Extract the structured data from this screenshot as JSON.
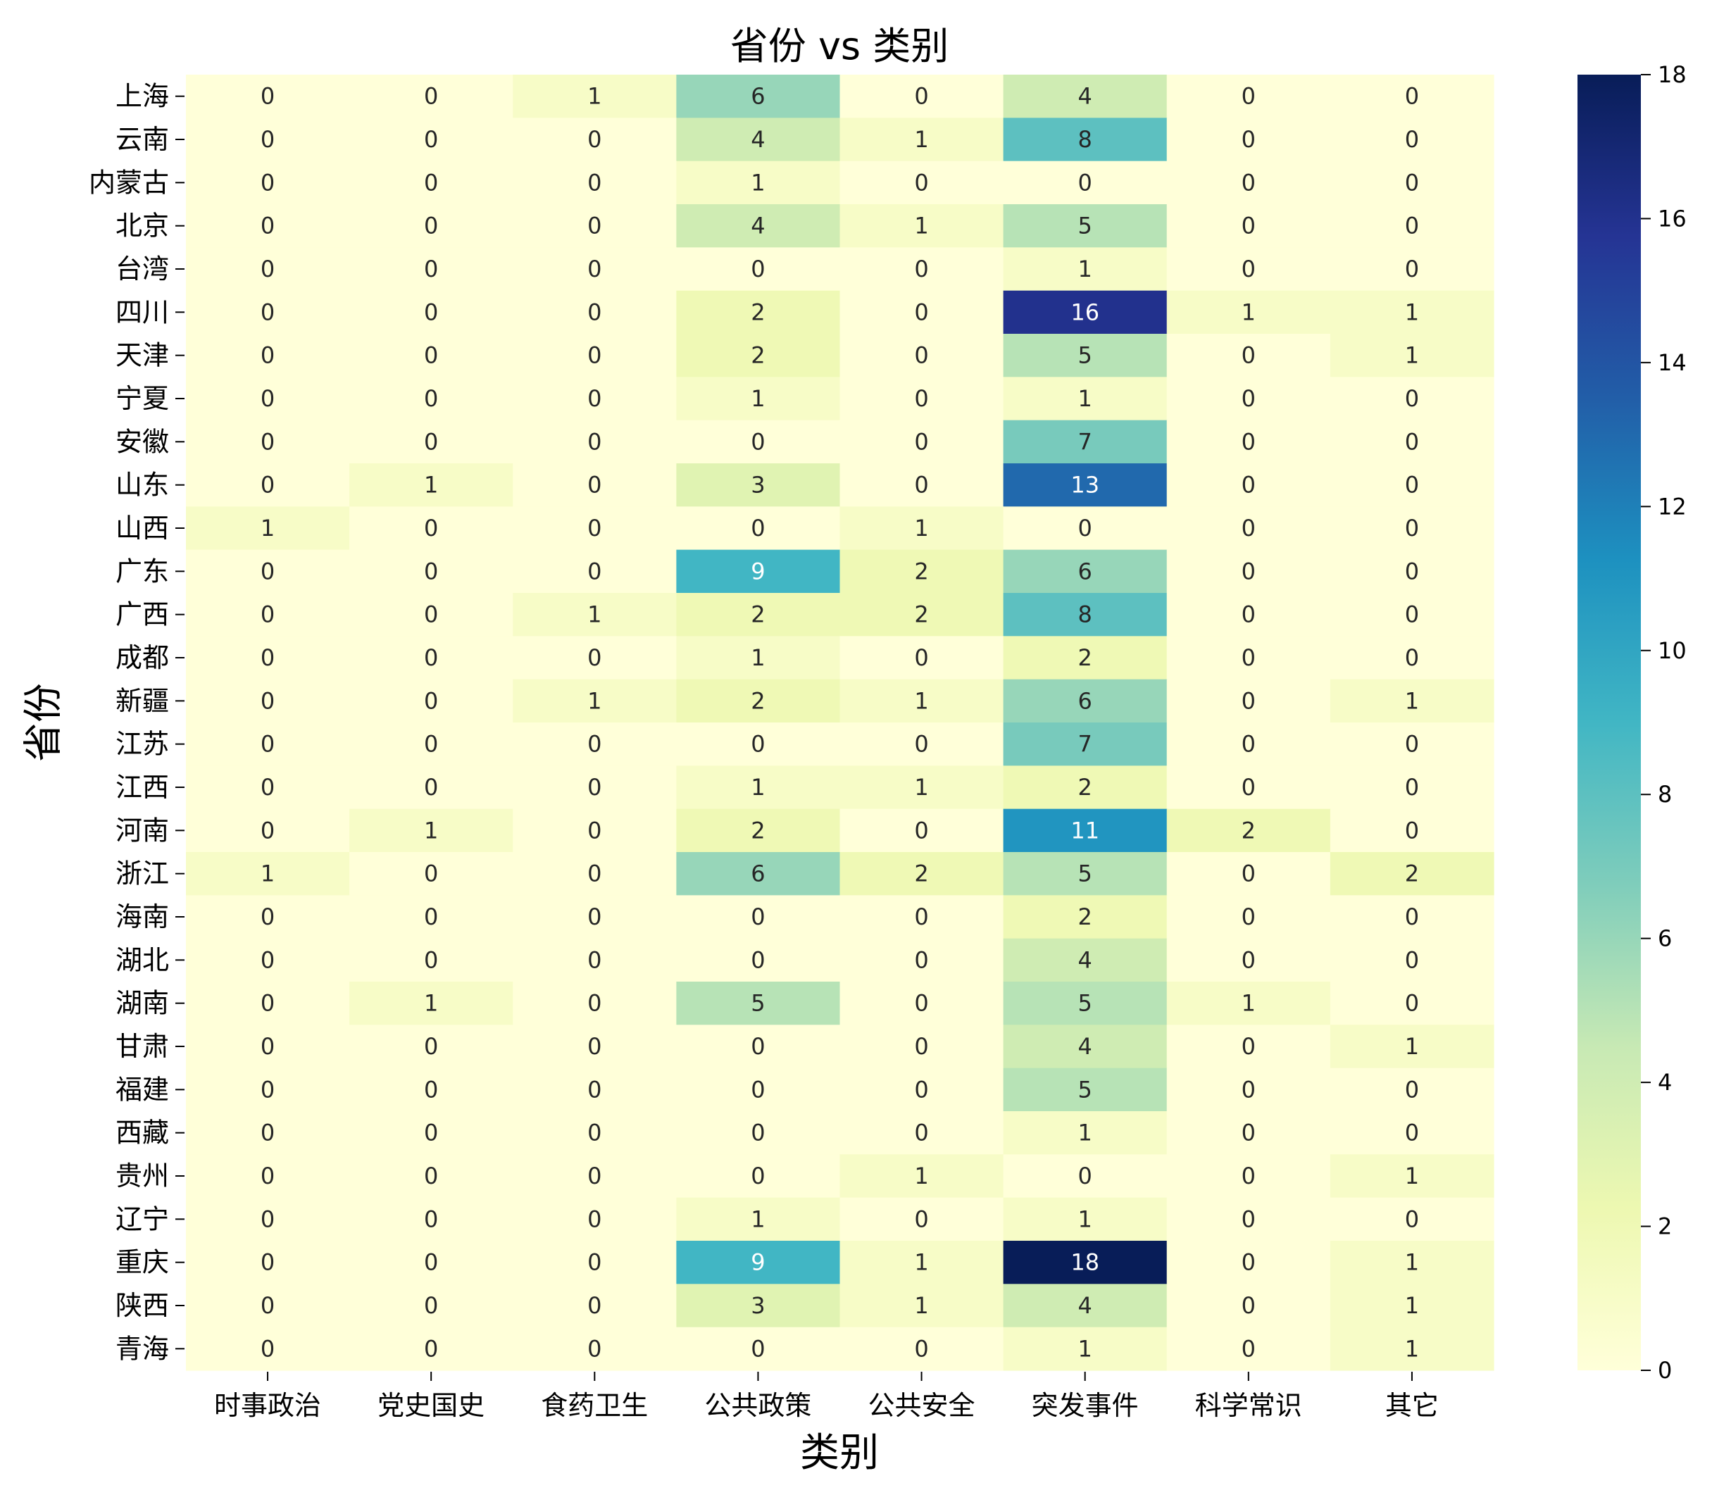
{
  "chart_data": {
    "type": "heatmap",
    "title": "省份 vs 类别",
    "xlabel": "类别",
    "ylabel": "省份",
    "x_categories": [
      "时事政治",
      "党史国史",
      "食药卫生",
      "公共政策",
      "公共安全",
      "突发事件",
      "科学常识",
      "其它"
    ],
    "y_categories": [
      "上海",
      "云南",
      "内蒙古",
      "北京",
      "台湾",
      "四川",
      "天津",
      "宁夏",
      "安徽",
      "山东",
      "山西",
      "广东",
      "广西",
      "成都",
      "新疆",
      "江苏",
      "江西",
      "河南",
      "浙江",
      "海南",
      "湖北",
      "湖南",
      "甘肃",
      "福建",
      "西藏",
      "贵州",
      "辽宁",
      "重庆",
      "陕西",
      "青海"
    ],
    "values": [
      [
        0,
        0,
        1,
        6,
        0,
        4,
        0,
        0
      ],
      [
        0,
        0,
        0,
        4,
        1,
        8,
        0,
        0
      ],
      [
        0,
        0,
        0,
        1,
        0,
        0,
        0,
        0
      ],
      [
        0,
        0,
        0,
        4,
        1,
        5,
        0,
        0
      ],
      [
        0,
        0,
        0,
        0,
        0,
        1,
        0,
        0
      ],
      [
        0,
        0,
        0,
        2,
        0,
        16,
        1,
        1
      ],
      [
        0,
        0,
        0,
        2,
        0,
        5,
        0,
        1
      ],
      [
        0,
        0,
        0,
        1,
        0,
        1,
        0,
        0
      ],
      [
        0,
        0,
        0,
        0,
        0,
        7,
        0,
        0
      ],
      [
        0,
        1,
        0,
        3,
        0,
        13,
        0,
        0
      ],
      [
        1,
        0,
        0,
        0,
        1,
        0,
        0,
        0
      ],
      [
        0,
        0,
        0,
        9,
        2,
        6,
        0,
        0
      ],
      [
        0,
        0,
        1,
        2,
        2,
        8,
        0,
        0
      ],
      [
        0,
        0,
        0,
        1,
        0,
        2,
        0,
        0
      ],
      [
        0,
        0,
        1,
        2,
        1,
        6,
        0,
        1
      ],
      [
        0,
        0,
        0,
        0,
        0,
        7,
        0,
        0
      ],
      [
        0,
        0,
        0,
        1,
        1,
        2,
        0,
        0
      ],
      [
        0,
        1,
        0,
        2,
        0,
        11,
        2,
        0
      ],
      [
        1,
        0,
        0,
        6,
        2,
        5,
        0,
        2
      ],
      [
        0,
        0,
        0,
        0,
        0,
        2,
        0,
        0
      ],
      [
        0,
        0,
        0,
        0,
        0,
        4,
        0,
        0
      ],
      [
        0,
        1,
        0,
        5,
        0,
        5,
        1,
        0
      ],
      [
        0,
        0,
        0,
        0,
        0,
        4,
        0,
        1
      ],
      [
        0,
        0,
        0,
        0,
        0,
        5,
        0,
        0
      ],
      [
        0,
        0,
        0,
        0,
        0,
        1,
        0,
        0
      ],
      [
        0,
        0,
        0,
        0,
        1,
        0,
        0,
        1
      ],
      [
        0,
        0,
        0,
        1,
        0,
        1,
        0,
        0
      ],
      [
        0,
        0,
        0,
        9,
        1,
        18,
        0,
        1
      ],
      [
        0,
        0,
        0,
        3,
        1,
        4,
        0,
        1
      ],
      [
        0,
        0,
        0,
        0,
        0,
        1,
        0,
        1
      ]
    ],
    "annotated": true,
    "annotation_colors": {
      "dark": "#262626",
      "light": "#ffffff"
    },
    "colormap": {
      "name": "YlGnBu",
      "stops": [
        "#ffffd9",
        "#edf8b1",
        "#c7e9b4",
        "#7fcdbb",
        "#41b6c4",
        "#1d91c0",
        "#225ea8",
        "#253494",
        "#081d58"
      ]
    },
    "colorbar": {
      "vmin": 0,
      "vmax": 18,
      "ticks": [
        0,
        2,
        4,
        6,
        8,
        10,
        12,
        14,
        16,
        18
      ],
      "placement": "right"
    }
  }
}
